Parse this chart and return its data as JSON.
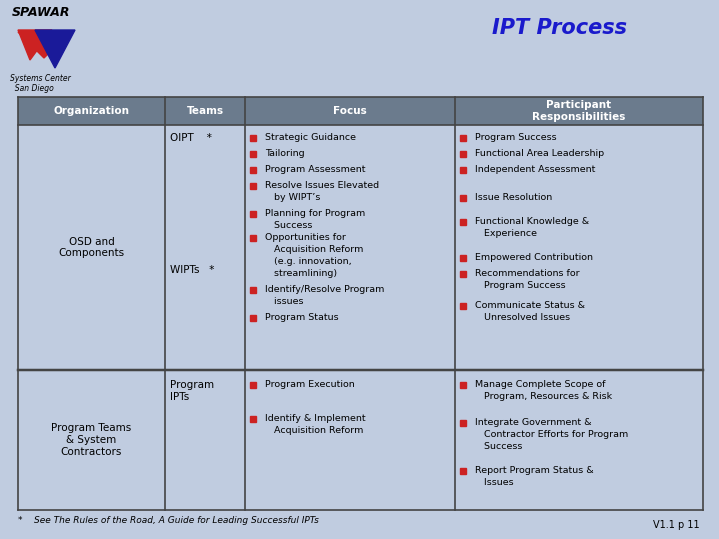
{
  "title": "IPT Process",
  "title_color": "#1a1acc",
  "bg_color": "#c0cce0",
  "header_bg": "#6b7b8d",
  "header_text_color": "#ffffff",
  "cell_bg": "#c0cce0",
  "table_border_color": "#444444",
  "headers": [
    "Organization",
    "Teams",
    "Focus",
    "Participant\nResponsibilities"
  ],
  "footnote": "*    See The Rules of the Road, A Guide for Leading Successful IPTs",
  "version": "V1.1 p 11",
  "bullet_color": "#cc2222",
  "text_color": "#000000",
  "logo_red": "#cc2222",
  "logo_blue": "#1a1a99"
}
